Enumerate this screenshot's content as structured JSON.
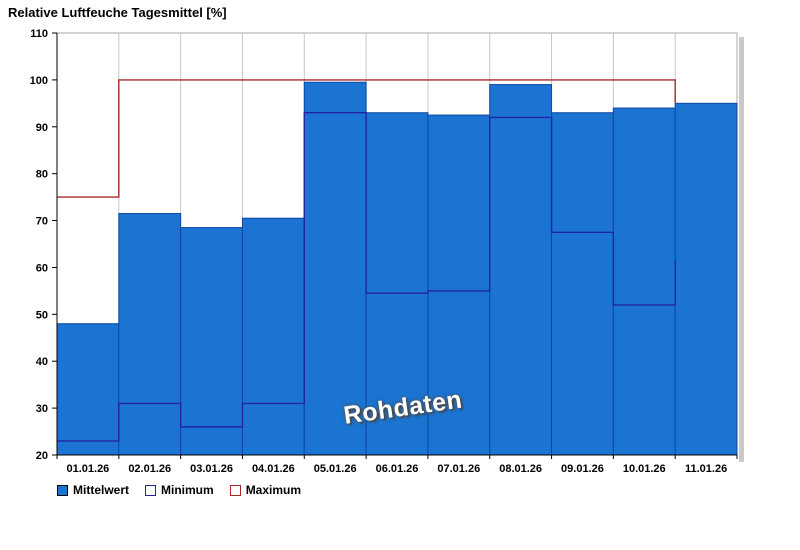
{
  "title": "Relative Luftfeuche Tagesmittel [%]",
  "watermark": "Rohdaten",
  "legend": [
    {
      "label": "Mittelwert",
      "fill": "#1B74D2",
      "border": "#000000"
    },
    {
      "label": "Minimum",
      "fill": "#FFFFFF",
      "border": "#2323A8"
    },
    {
      "label": "Maximum",
      "fill": "#FFFFFF",
      "border": "#A52A2A"
    }
  ],
  "colors": {
    "bar_fill": "#1B74D2",
    "bar_border": "#0E47A1",
    "min_line": "#2323A8",
    "max_line": "#A52A2A",
    "grid": "#C6C6C6",
    "plot_border": "#A8A8A8",
    "axis": "#000000",
    "shadow": "#C9C9C9"
  },
  "chart_data": {
    "type": "bar",
    "title": "Relative Luftfeuche Tagesmittel [%]",
    "categories": [
      "01.01.26",
      "02.01.26",
      "03.01.26",
      "04.01.26",
      "05.01.26",
      "06.01.26",
      "07.01.26",
      "08.01.26",
      "09.01.26",
      "10.01.26",
      "11.01.26"
    ],
    "ylim": [
      20,
      110
    ],
    "yticks": [
      20,
      30,
      40,
      50,
      60,
      70,
      80,
      90,
      100,
      110
    ],
    "grid": "vertical-only",
    "legend_position": "bottom-left",
    "series": [
      {
        "name": "Mittelwert",
        "type": "bar",
        "values": [
          48,
          71.5,
          68.5,
          70.5,
          99.5,
          93,
          92.5,
          99,
          93,
          94,
          95
        ]
      },
      {
        "name": "Minimum",
        "type": "step",
        "values": [
          23,
          31,
          26,
          31,
          93,
          54.5,
          55,
          92,
          67.5,
          52,
          null
        ],
        "terminal_value": 61.5
      },
      {
        "name": "Maximum",
        "type": "step",
        "values": [
          75,
          100,
          100,
          100,
          100,
          100,
          100,
          100,
          100,
          100,
          null
        ],
        "terminal_value": 95
      }
    ]
  }
}
